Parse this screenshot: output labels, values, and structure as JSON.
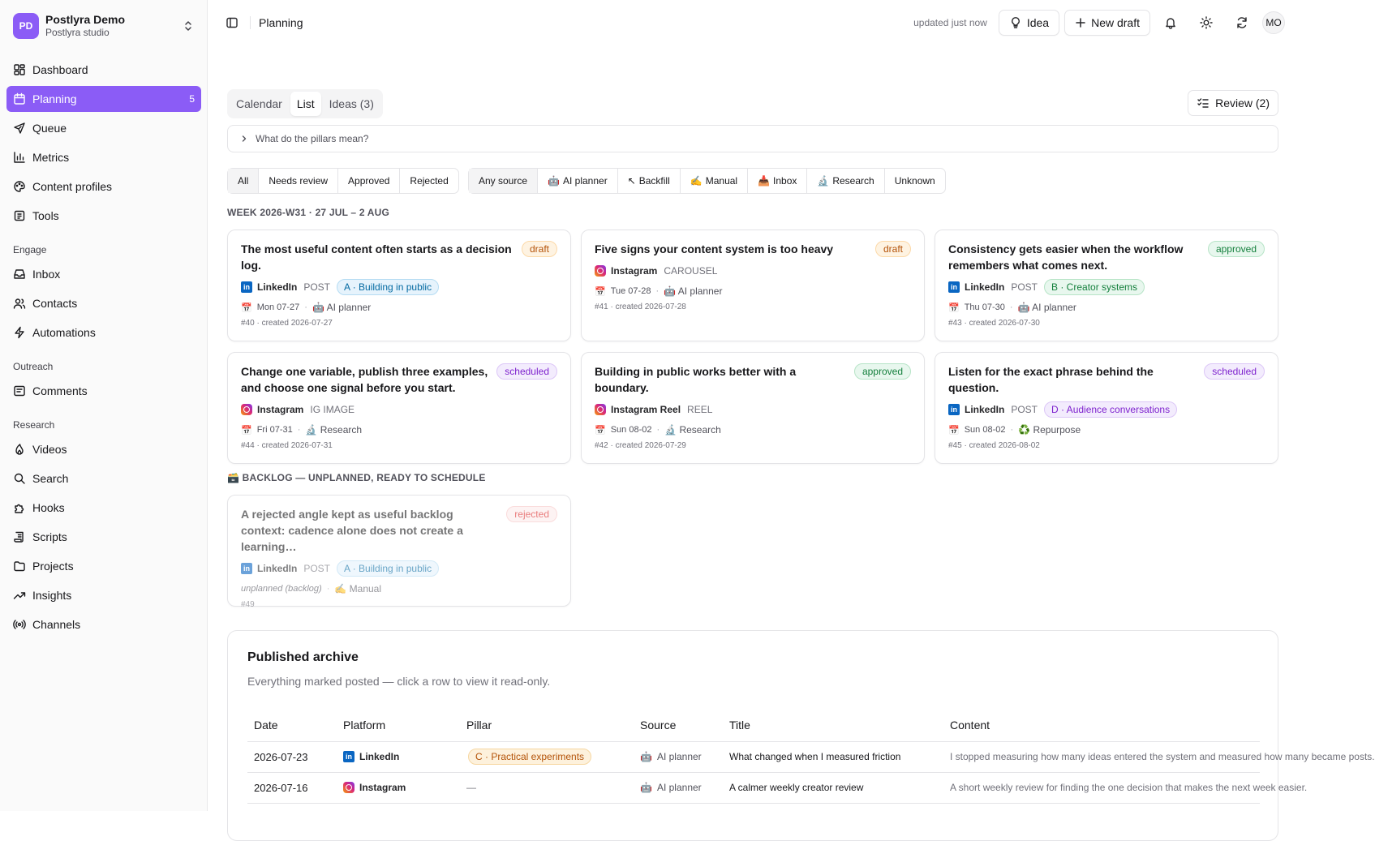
{
  "workspace": {
    "initials": "PD",
    "name": "Postlyra Demo",
    "subtitle": "Postlyra studio"
  },
  "nav_main": [
    {
      "label": "Dashboard",
      "icon": "dashboard-icon"
    },
    {
      "label": "Planning",
      "icon": "calendar-icon",
      "count": "5",
      "active": true
    },
    {
      "label": "Queue",
      "icon": "send-icon"
    },
    {
      "label": "Metrics",
      "icon": "bar-chart-icon"
    },
    {
      "label": "Content profiles",
      "icon": "palette-icon"
    },
    {
      "label": "Tools",
      "icon": "tools-icon"
    }
  ],
  "nav_groups": [
    {
      "label": "Engage",
      "items": [
        {
          "label": "Inbox",
          "icon": "inbox-icon"
        },
        {
          "label": "Contacts",
          "icon": "users-icon"
        },
        {
          "label": "Automations",
          "icon": "zap-icon"
        }
      ]
    },
    {
      "label": "Outreach",
      "items": [
        {
          "label": "Comments",
          "icon": "comment-icon"
        }
      ]
    },
    {
      "label": "Research",
      "items": [
        {
          "label": "Videos",
          "icon": "flame-icon"
        },
        {
          "label": "Search",
          "icon": "search-icon"
        },
        {
          "label": "Hooks",
          "icon": "puzzle-icon"
        },
        {
          "label": "Scripts",
          "icon": "scroll-icon"
        },
        {
          "label": "Projects",
          "icon": "folder-icon"
        },
        {
          "label": "Insights",
          "icon": "trend-icon"
        },
        {
          "label": "Channels",
          "icon": "radio-icon"
        }
      ]
    }
  ],
  "header": {
    "title": "Planning",
    "updated": "updated just now",
    "idea_label": "Idea",
    "new_draft_label": "New draft",
    "user_initials": "MO"
  },
  "tabs": [
    {
      "label": "Calendar"
    },
    {
      "label": "List",
      "active": true
    },
    {
      "label": "Ideas (3)"
    }
  ],
  "review_label": "Review (2)",
  "pillars_toggle": "What do the pillars mean?",
  "status_filters": [
    "All",
    "Needs review",
    "Approved",
    "Rejected"
  ],
  "source_filters": [
    {
      "label": "Any source",
      "emoji": ""
    },
    {
      "label": "AI planner",
      "emoji": "🤖"
    },
    {
      "label": "Backfill",
      "emoji": "↖"
    },
    {
      "label": "Manual",
      "emoji": "✍️"
    },
    {
      "label": "Inbox",
      "emoji": "📥"
    },
    {
      "label": "Research",
      "emoji": "🔬"
    },
    {
      "label": "Unknown",
      "emoji": ""
    }
  ],
  "week_label": "WEEK 2026-W31 · 27 JUL – 2 AUG",
  "backlog_label": "🗃️ BACKLOG — UNPLANNED, READY TO SCHEDULE",
  "cards": [
    {
      "title": "The most useful content often starts as a decision log.",
      "status": "draft",
      "platform": "LinkedIn",
      "ptype": "POST",
      "pillar": "A · Building in public",
      "date": "Mon 07-27",
      "source": "AI planner",
      "source_emoji": "🤖",
      "meta": "#40 · created 2026-07-27"
    },
    {
      "title": "Five signs your content system is too heavy",
      "status": "draft",
      "platform": "Instagram",
      "ptype": "CAROUSEL",
      "pillar": "",
      "date": "Tue 07-28",
      "source": "AI planner",
      "source_emoji": "🤖",
      "meta": "#41 · created 2026-07-28"
    },
    {
      "title": "Consistency gets easier when the workflow remembers what comes next.",
      "status": "approved",
      "platform": "LinkedIn",
      "ptype": "POST",
      "pillar": "B · Creator systems",
      "date": "Thu 07-30",
      "source": "AI planner",
      "source_emoji": "🤖",
      "meta": "#43 · created 2026-07-30"
    },
    {
      "title": "Change one variable, publish three examples, and choose one signal before you start.",
      "status": "scheduled",
      "platform": "Instagram",
      "ptype": "IG IMAGE",
      "pillar": "",
      "date": "Fri 07-31",
      "source": "Research",
      "source_emoji": "🔬",
      "meta": "#44 · created 2026-07-31"
    },
    {
      "title": "Building in public works better with a boundary.",
      "status": "approved",
      "platform": "Instagram Reel",
      "ptype": "REEL",
      "pillar": "",
      "date": "Sun 08-02",
      "source": "Research",
      "source_emoji": "🔬",
      "meta": "#42 · created 2026-07-29"
    },
    {
      "title": "Listen for the exact phrase behind the question.",
      "status": "scheduled",
      "platform": "LinkedIn",
      "ptype": "POST",
      "pillar": "D · Audience conversations",
      "date": "Sun 08-02",
      "source": "Repurpose",
      "source_emoji": "♻️",
      "meta": "#45 · created 2026-08-02"
    }
  ],
  "backlog_card": {
    "title": "A rejected angle kept as useful backlog context: cadence alone does not create a learning…",
    "status": "rejected",
    "platform": "LinkedIn",
    "ptype": "POST",
    "pillar": "A · Building in public",
    "date": "unplanned (backlog)",
    "source": "Manual",
    "source_emoji": "✍️",
    "meta": "#49"
  },
  "date_emoji": "📅",
  "archive": {
    "title": "Published archive",
    "subtitle": "Everything marked posted — click a row to view it read-only.",
    "columns": [
      "Date",
      "Platform",
      "Pillar",
      "Source",
      "Title",
      "Content"
    ],
    "rows": [
      {
        "date": "2026-07-23",
        "platform": "LinkedIn",
        "pillar": "C · Practical experiments",
        "source": "AI planner",
        "source_emoji": "🤖",
        "title": "What changed when I measured friction",
        "content": "I stopped measuring how many ideas entered the system and measured how many became posts."
      },
      {
        "date": "2026-07-16",
        "platform": "Instagram",
        "pillar": "—",
        "source": "AI planner",
        "source_emoji": "🤖",
        "title": "A calmer weekly creator review",
        "content": "A short weekly review for finding the one decision that makes the next week easier."
      }
    ]
  },
  "colors": {
    "accent": "#8b5cf6",
    "linkedin": "#0a66c2"
  }
}
